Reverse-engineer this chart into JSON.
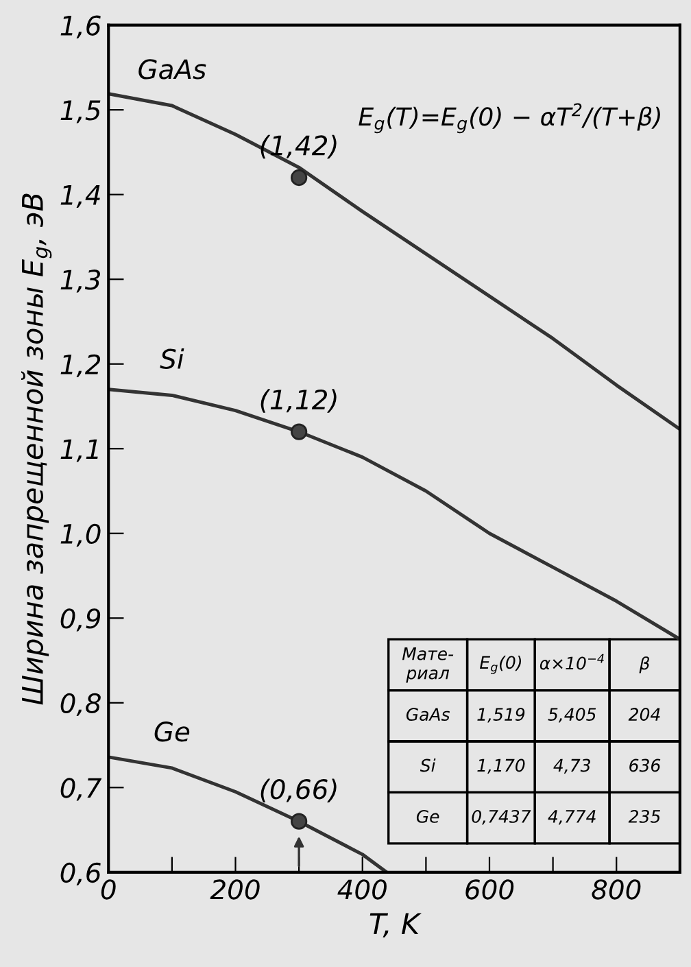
{
  "chart_data": {
    "type": "line",
    "xlabel": "T, K",
    "ylabel": "Ширина запрещенной зоны E$_{g}$, эВ",
    "xlim": [
      0,
      900
    ],
    "ylim": [
      0.6,
      1.6
    ],
    "xticks": [
      0,
      {
        "value": 100,
        "label": null
      },
      200,
      {
        "value": 300,
        "label": null
      },
      400,
      {
        "value": 500,
        "label": null
      },
      600,
      {
        "value": 700,
        "label": null
      },
      800
    ],
    "yticks": [
      {
        "value": 0.6,
        "label": "0,6"
      },
      {
        "value": 0.7,
        "label": "0,7"
      },
      {
        "value": 0.8,
        "label": "0,8"
      },
      {
        "value": 0.9,
        "label": "0,9"
      },
      {
        "value": 1.0,
        "label": "1,0"
      },
      {
        "value": 1.1,
        "label": "1,1"
      },
      {
        "value": 1.2,
        "label": "1,2"
      },
      {
        "value": 1.3,
        "label": "1,3"
      },
      {
        "value": 1.4,
        "label": "1,4"
      },
      {
        "value": 1.5,
        "label": "1,5"
      },
      {
        "value": 1.6,
        "label": "1,6"
      }
    ],
    "grid": false,
    "series": [
      {
        "name": "GaAs",
        "color": "#333333",
        "marker": "none",
        "x": [
          0,
          100,
          200,
          300,
          400,
          500,
          600,
          700,
          800,
          900
        ],
        "values": [
          1.519,
          1.505,
          1.471,
          1.432,
          1.38,
          1.33,
          1.28,
          1.23,
          1.175,
          1.123
        ]
      },
      {
        "name": "Si",
        "color": "#333333",
        "marker": "none",
        "x": [
          0,
          100,
          200,
          300,
          400,
          500,
          600,
          700,
          800,
          900
        ],
        "values": [
          1.17,
          1.163,
          1.145,
          1.12,
          1.09,
          1.05,
          1.0,
          0.96,
          0.92,
          0.875
        ]
      },
      {
        "name": "Ge",
        "color": "#333333",
        "marker": "none",
        "x": [
          0,
          100,
          200,
          300,
          400,
          438
        ],
        "values": [
          0.736,
          0.723,
          0.695,
          0.66,
          0.621,
          0.6
        ]
      },
      {
        "type": "scatter",
        "color": "#444444",
        "marker": "circle",
        "x": [
          300,
          300,
          300
        ],
        "values": [
          1.42,
          1.12,
          0.66
        ],
        "value_labels": [
          "(1,42)",
          "(1,12)",
          "(0,66)"
        ]
      }
    ],
    "annotations": [
      "E$_{g}$(T)=E$_{g}$(0) − αT$^{2}$/(T+β)",
      "Мате-\nриал",
      "E$_{g}$(0)",
      "α×10$^{−4}$",
      "β",
      "GaAs",
      "1,519",
      "5,405",
      "204",
      "Si",
      "1,170",
      "4,73",
      "636",
      "Ge",
      "0,7437",
      "4,774",
      "235"
    ]
  }
}
